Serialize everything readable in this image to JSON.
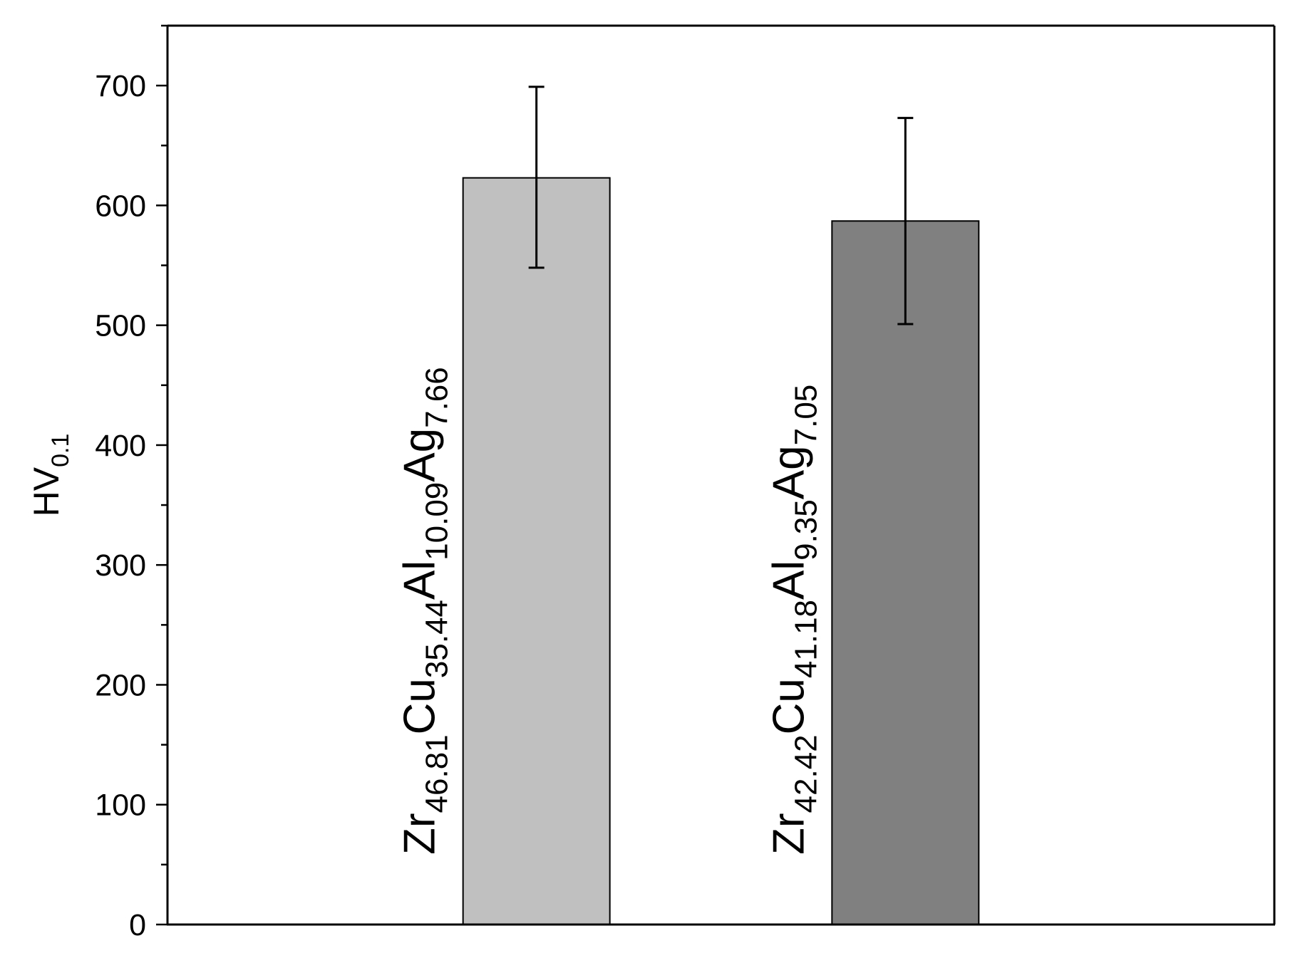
{
  "chart_data": {
    "type": "bar",
    "title": "",
    "xlabel": "",
    "ylabel": {
      "base": "HV",
      "sub": "0.1"
    },
    "ylim": [
      0,
      750
    ],
    "yticks": [
      0,
      100,
      200,
      300,
      400,
      500,
      600,
      700
    ],
    "y_minor_step": 50,
    "grid": false,
    "legend": "none",
    "x_range": [
      0,
      3
    ],
    "categories": [
      [
        {
          "t": "Zr",
          "s": false
        },
        {
          "t": "46.81",
          "s": true
        },
        {
          "t": "Cu",
          "s": false
        },
        {
          "t": "35.44",
          "s": true
        },
        {
          "t": "Al",
          "s": false
        },
        {
          "t": "10.09",
          "s": true
        },
        {
          "t": "Ag",
          "s": false
        },
        {
          "t": "7.66",
          "s": true
        }
      ],
      [
        {
          "t": "Zr",
          "s": false
        },
        {
          "t": "42.42",
          "s": true
        },
        {
          "t": "Cu",
          "s": false
        },
        {
          "t": "41.18",
          "s": true
        },
        {
          "t": "Al",
          "s": false
        },
        {
          "t": "9.35",
          "s": true
        },
        {
          "t": "Ag",
          "s": false
        },
        {
          "t": "7.05",
          "s": true
        }
      ]
    ],
    "x": [
      1,
      2
    ],
    "values": [
      623,
      587
    ],
    "error_low": [
      548,
      501
    ],
    "error_high": [
      699,
      673
    ],
    "bar_colors": [
      "#c0c0c0",
      "#808080"
    ]
  }
}
